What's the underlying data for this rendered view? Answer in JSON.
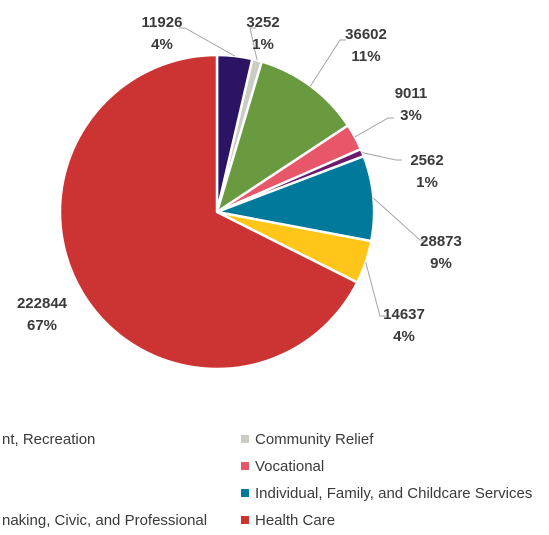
{
  "chart_data": {
    "type": "pie",
    "title": "",
    "slices": [
      {
        "value": 11926,
        "percent": "4%",
        "color": "#2b1464"
      },
      {
        "value": 3252,
        "percent": "1%",
        "color": "#c9cdc4"
      },
      {
        "value": 36602,
        "percent": "11%",
        "color": "#6a9a3f"
      },
      {
        "value": 9011,
        "percent": "3%",
        "color": "#e8566a"
      },
      {
        "value": 2562,
        "percent": "1%",
        "color": "#6b1a6e"
      },
      {
        "value": 28873,
        "percent": "9%",
        "color": "#00799a"
      },
      {
        "value": 14637,
        "percent": "4%",
        "color": "#ffc619"
      },
      {
        "value": 222844,
        "percent": "67%",
        "color": "#cc3333"
      }
    ],
    "legend": [
      {
        "label": "nt, Recreation",
        "color": ""
      },
      {
        "label": "Community Relief",
        "color": "#c9cdc4"
      },
      {
        "label": "Vocational",
        "color": "#e8566a"
      },
      {
        "label": "Individual, Family, and Childcare Services",
        "color": "#00799a"
      },
      {
        "label": "naking, Civic, and Professional",
        "color": ""
      },
      {
        "label": "Health Care",
        "color": "#cc3333"
      }
    ]
  }
}
